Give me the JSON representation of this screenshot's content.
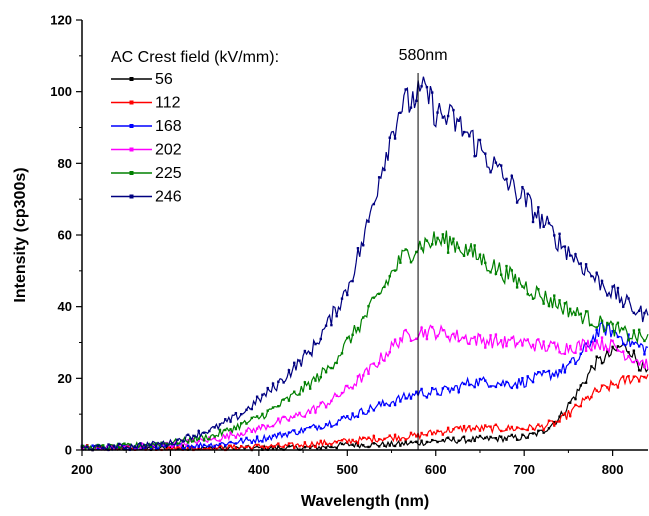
{
  "chart_data": {
    "type": "line",
    "title": "",
    "xlabel": "Wavelength (nm)",
    "ylabel": "Intensity (cp300s)",
    "xlim": [
      200,
      840
    ],
    "ylim": [
      0,
      120
    ],
    "xticks": [
      200,
      300,
      400,
      500,
      600,
      700,
      800
    ],
    "yticks": [
      0,
      20,
      40,
      60,
      80,
      100,
      120
    ],
    "grid": false,
    "legend": {
      "title": "AC Crest field (kV/mm):",
      "placement": "top-left"
    },
    "annotations": [
      {
        "text": "580nm",
        "x": 580,
        "type": "vertical-line"
      }
    ],
    "series": [
      {
        "name": "56",
        "color": "#000000",
        "marker": "square",
        "points": [
          [
            200,
            0.5
          ],
          [
            250,
            0.5
          ],
          [
            300,
            0.5
          ],
          [
            350,
            0.5
          ],
          [
            400,
            0.5
          ],
          [
            450,
            0.5
          ],
          [
            480,
            1
          ],
          [
            500,
            1.5
          ],
          [
            550,
            1.5
          ],
          [
            580,
            2
          ],
          [
            600,
            2.5
          ],
          [
            650,
            3
          ],
          [
            700,
            3.5
          ],
          [
            720,
            5
          ],
          [
            740,
            9
          ],
          [
            760,
            16
          ],
          [
            780,
            24
          ],
          [
            800,
            27
          ],
          [
            810,
            29
          ],
          [
            820,
            28
          ],
          [
            830,
            24
          ],
          [
            840,
            21
          ]
        ]
      },
      {
        "name": "112",
        "color": "#ff0000",
        "marker": "circle",
        "points": [
          [
            200,
            0.5
          ],
          [
            250,
            0.5
          ],
          [
            300,
            0.5
          ],
          [
            350,
            0.5
          ],
          [
            400,
            1
          ],
          [
            430,
            1
          ],
          [
            450,
            1.5
          ],
          [
            480,
            2
          ],
          [
            500,
            2.5
          ],
          [
            550,
            3.5
          ],
          [
            580,
            4
          ],
          [
            600,
            5
          ],
          [
            630,
            6
          ],
          [
            650,
            6
          ],
          [
            680,
            6
          ],
          [
            700,
            6
          ],
          [
            720,
            6.5
          ],
          [
            740,
            8
          ],
          [
            760,
            12
          ],
          [
            780,
            16
          ],
          [
            800,
            18
          ],
          [
            820,
            20
          ],
          [
            840,
            21
          ]
        ]
      },
      {
        "name": "168",
        "color": "#0000ff",
        "marker": "triangle",
        "points": [
          [
            200,
            0.5
          ],
          [
            250,
            0.5
          ],
          [
            300,
            1
          ],
          [
            350,
            1.5
          ],
          [
            400,
            3
          ],
          [
            450,
            5.5
          ],
          [
            480,
            7.5
          ],
          [
            500,
            9
          ],
          [
            520,
            11
          ],
          [
            550,
            13.5
          ],
          [
            570,
            15
          ],
          [
            580,
            16
          ],
          [
            600,
            16
          ],
          [
            620,
            17
          ],
          [
            640,
            19
          ],
          [
            660,
            19
          ],
          [
            680,
            18.5
          ],
          [
            700,
            19
          ],
          [
            720,
            20.5
          ],
          [
            740,
            22
          ],
          [
            760,
            25
          ],
          [
            780,
            32
          ],
          [
            790,
            34
          ],
          [
            800,
            33
          ],
          [
            820,
            30
          ],
          [
            840,
            28
          ]
        ]
      },
      {
        "name": "202",
        "color": "#ff00ff",
        "marker": "triangle-down",
        "points": [
          [
            200,
            0.5
          ],
          [
            250,
            1
          ],
          [
            300,
            1.5
          ],
          [
            350,
            3
          ],
          [
            400,
            6
          ],
          [
            450,
            10
          ],
          [
            480,
            13.5
          ],
          [
            500,
            17
          ],
          [
            520,
            21
          ],
          [
            540,
            26
          ],
          [
            560,
            31
          ],
          [
            580,
            33
          ],
          [
            600,
            33
          ],
          [
            620,
            32
          ],
          [
            640,
            31
          ],
          [
            660,
            30.5
          ],
          [
            680,
            30
          ],
          [
            700,
            30
          ],
          [
            720,
            29
          ],
          [
            740,
            28.5
          ],
          [
            760,
            29
          ],
          [
            780,
            30
          ],
          [
            800,
            29
          ],
          [
            820,
            26
          ],
          [
            840,
            24
          ]
        ]
      },
      {
        "name": "225",
        "color": "#008000",
        "marker": "diamond",
        "points": [
          [
            200,
            0.5
          ],
          [
            250,
            1
          ],
          [
            300,
            2
          ],
          [
            350,
            4
          ],
          [
            400,
            9
          ],
          [
            420,
            12
          ],
          [
            450,
            17
          ],
          [
            480,
            23
          ],
          [
            500,
            30
          ],
          [
            520,
            37
          ],
          [
            540,
            45
          ],
          [
            560,
            53
          ],
          [
            580,
            57
          ],
          [
            600,
            58.5
          ],
          [
            620,
            58
          ],
          [
            640,
            55
          ],
          [
            660,
            52
          ],
          [
            680,
            49
          ],
          [
            700,
            46
          ],
          [
            720,
            43
          ],
          [
            740,
            40.5
          ],
          [
            760,
            38
          ],
          [
            780,
            36
          ],
          [
            800,
            34
          ],
          [
            820,
            32
          ],
          [
            840,
            31
          ]
        ]
      },
      {
        "name": "246",
        "color": "#000080",
        "marker": "triangle-left",
        "points": [
          [
            200,
            0.5
          ],
          [
            250,
            1
          ],
          [
            300,
            2
          ],
          [
            350,
            6
          ],
          [
            380,
            10
          ],
          [
            400,
            14
          ],
          [
            420,
            18
          ],
          [
            440,
            23
          ],
          [
            460,
            28
          ],
          [
            480,
            36
          ],
          [
            500,
            45
          ],
          [
            520,
            60
          ],
          [
            540,
            80
          ],
          [
            550,
            88
          ],
          [
            560,
            96
          ],
          [
            570,
            97
          ],
          [
            580,
            99
          ],
          [
            590,
            100
          ],
          [
            600,
            94
          ],
          [
            620,
            92
          ],
          [
            640,
            87
          ],
          [
            660,
            81
          ],
          [
            680,
            75
          ],
          [
            700,
            70
          ],
          [
            720,
            64
          ],
          [
            740,
            58
          ],
          [
            760,
            53
          ],
          [
            780,
            48
          ],
          [
            800,
            44
          ],
          [
            820,
            40
          ],
          [
            840,
            37
          ]
        ]
      }
    ]
  }
}
